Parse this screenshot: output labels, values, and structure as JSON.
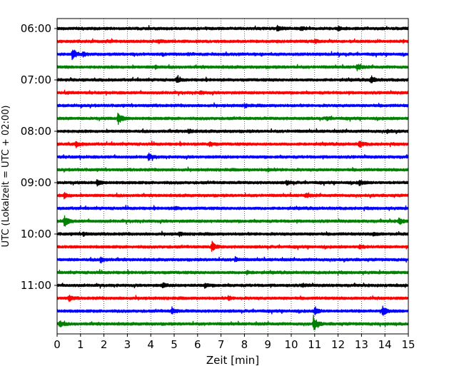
{
  "chart_data": {
    "type": "line",
    "title": "",
    "xlabel": "Zeit  [min]",
    "ylabel": "UTC (Lokalzeit = UTC + 02:00)",
    "xlim": [
      0,
      15
    ],
    "xticks": [
      0,
      1,
      2,
      3,
      4,
      5,
      6,
      7,
      8,
      9,
      10,
      11,
      12,
      13,
      14,
      15
    ],
    "xtick_labels": [
      "0",
      "1",
      "2",
      "3",
      "4",
      "5",
      "6",
      "7",
      "8",
      "9",
      "10",
      "11",
      "12",
      "13",
      "14",
      "15"
    ],
    "ytick_labels": [
      "06:00",
      "07:00",
      "08:00",
      "09:00",
      "10:00",
      "11:00"
    ],
    "ytick_rows": [
      0,
      4,
      8,
      12,
      16,
      20
    ],
    "grid": "vertical-dotted",
    "row_colors": [
      "#000000",
      "#ff0000",
      "#0000ff",
      "#008000"
    ],
    "rows": [
      {
        "time": "06:00",
        "events": [
          {
            "t": 9.4,
            "a": 0.5
          },
          {
            "t": 10.4,
            "a": 0.3
          },
          {
            "t": 12.0,
            "a": 0.3
          }
        ]
      },
      {
        "time": "06:15",
        "events": [
          {
            "t": 4.3,
            "a": 0.25
          },
          {
            "t": 11.0,
            "a": 0.2
          }
        ]
      },
      {
        "time": "06:30",
        "events": [
          {
            "t": 0.65,
            "a": 1.0
          },
          {
            "t": 1.1,
            "a": 0.3
          }
        ]
      },
      {
        "time": "06:45",
        "events": [
          {
            "t": 12.8,
            "a": 0.5
          },
          {
            "t": 4.2,
            "a": 0.2
          }
        ]
      },
      {
        "time": "07:00",
        "events": [
          {
            "t": 5.1,
            "a": 0.4
          },
          {
            "t": 13.4,
            "a": 0.6
          }
        ]
      },
      {
        "time": "07:15",
        "events": [
          {
            "t": 6.1,
            "a": 0.2
          }
        ]
      },
      {
        "time": "07:30",
        "events": [
          {
            "t": 8.0,
            "a": 0.2
          }
        ]
      },
      {
        "time": "07:45",
        "events": [
          {
            "t": 2.6,
            "a": 1.0
          },
          {
            "t": 11.5,
            "a": 0.25
          }
        ]
      },
      {
        "time": "08:00",
        "events": [
          {
            "t": 5.6,
            "a": 0.3
          },
          {
            "t": 14.1,
            "a": 0.2
          }
        ]
      },
      {
        "time": "08:15",
        "events": [
          {
            "t": 0.8,
            "a": 0.4
          },
          {
            "t": 6.5,
            "a": 0.35
          },
          {
            "t": 12.9,
            "a": 0.5
          }
        ]
      },
      {
        "time": "08:30",
        "events": [
          {
            "t": 3.9,
            "a": 0.5
          }
        ]
      },
      {
        "time": "08:45",
        "events": [
          {
            "t": 9.0,
            "a": 0.15
          }
        ]
      },
      {
        "time": "09:00",
        "events": [
          {
            "t": 1.7,
            "a": 0.4
          },
          {
            "t": 9.8,
            "a": 0.3
          },
          {
            "t": 12.9,
            "a": 0.4
          }
        ]
      },
      {
        "time": "09:15",
        "events": [
          {
            "t": 0.3,
            "a": 0.4
          },
          {
            "t": 10.6,
            "a": 0.3
          }
        ]
      },
      {
        "time": "09:30",
        "events": [
          {
            "t": 5.0,
            "a": 0.2
          }
        ]
      },
      {
        "time": "09:45",
        "events": [
          {
            "t": 0.3,
            "a": 0.9
          },
          {
            "t": 14.6,
            "a": 0.5
          }
        ]
      },
      {
        "time": "10:00",
        "events": [
          {
            "t": 1.1,
            "a": 0.25
          },
          {
            "t": 5.2,
            "a": 0.25
          },
          {
            "t": 13.5,
            "a": 0.25
          }
        ]
      },
      {
        "time": "10:15",
        "events": [
          {
            "t": 6.6,
            "a": 0.8
          },
          {
            "t": 12.9,
            "a": 0.35
          }
        ]
      },
      {
        "time": "10:30",
        "events": [
          {
            "t": 1.85,
            "a": 0.4
          },
          {
            "t": 7.6,
            "a": 0.3
          }
        ]
      },
      {
        "time": "10:45",
        "events": [
          {
            "t": 8.1,
            "a": 0.2
          }
        ]
      },
      {
        "time": "11:00",
        "events": [
          {
            "t": 4.5,
            "a": 0.35
          },
          {
            "t": 6.3,
            "a": 0.3
          },
          {
            "t": 10.5,
            "a": 0.2
          }
        ]
      },
      {
        "time": "11:15",
        "events": [
          {
            "t": 0.5,
            "a": 0.4
          },
          {
            "t": 7.3,
            "a": 0.25
          }
        ]
      },
      {
        "time": "11:30",
        "events": [
          {
            "t": 4.9,
            "a": 0.5
          },
          {
            "t": 11.0,
            "a": 0.6
          },
          {
            "t": 13.9,
            "a": 0.9
          }
        ]
      },
      {
        "time": "11:45",
        "events": [
          {
            "t": 0.1,
            "a": 0.5
          },
          {
            "t": 10.95,
            "a": 1.2
          }
        ]
      }
    ]
  }
}
